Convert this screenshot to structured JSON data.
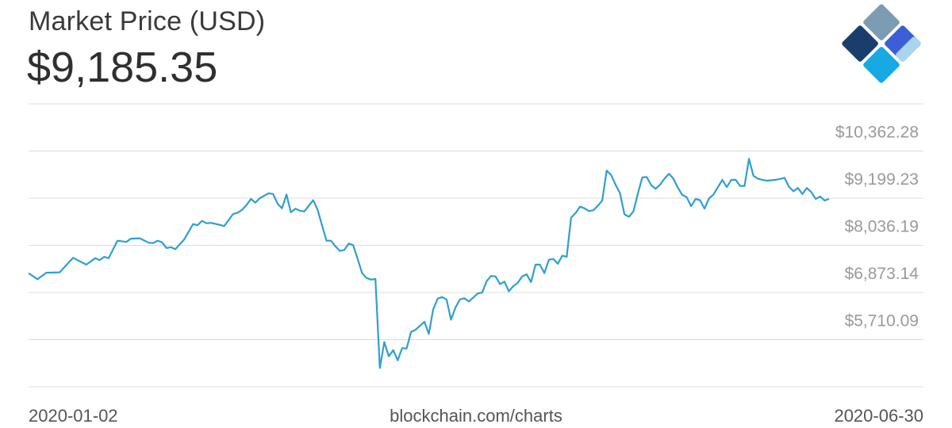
{
  "header": {
    "title": "Market Price (USD)",
    "current_price": "$9,185.35"
  },
  "logo": {
    "icon": "blockchain-diamond-logo-icon",
    "colors": [
      "#7d9cb3",
      "#2c4f9e",
      "#1a3d6e",
      "#3d5ed4",
      "#17a9e3",
      "#a9d5ee"
    ]
  },
  "footer": {
    "start_date": "2020-01-02",
    "source": "blockchain.com/charts",
    "end_date": "2020-06-30"
  },
  "chart_data": {
    "type": "line",
    "title": "Market Price (USD)",
    "xlabel": "",
    "ylabel": "",
    "grid": true,
    "y_axis_position": "right",
    "xlim": [
      "2020-01-02",
      "2020-06-30"
    ],
    "ylim": [
      4547.04,
      11525.33
    ],
    "y_ticks": [
      5710.09,
      6873.14,
      8036.19,
      9199.23,
      10362.28
    ],
    "y_tick_labels": [
      "$5,710.09",
      "$6,873.14",
      "$8,036.19",
      "$9,199.23",
      "$10,362.28"
    ],
    "line_color": "#2f9fcf",
    "series": [
      {
        "values": [
          [
            0,
            7350
          ],
          [
            2,
            7200
          ],
          [
            4,
            7360
          ],
          [
            7,
            7370
          ],
          [
            10,
            7730
          ],
          [
            11,
            7670
          ],
          [
            13,
            7560
          ],
          [
            15,
            7720
          ],
          [
            16,
            7670
          ],
          [
            17,
            7750
          ],
          [
            18,
            7720
          ],
          [
            20,
            8150
          ],
          [
            22,
            8120
          ],
          [
            23,
            8200
          ],
          [
            25,
            8210
          ],
          [
            27,
            8100
          ],
          [
            28,
            8090
          ],
          [
            29,
            8150
          ],
          [
            30,
            8110
          ],
          [
            31,
            7970
          ],
          [
            32,
            7990
          ],
          [
            33,
            7940
          ],
          [
            35,
            8180
          ],
          [
            37,
            8560
          ],
          [
            38,
            8530
          ],
          [
            39,
            8640
          ],
          [
            40,
            8580
          ],
          [
            41,
            8590
          ],
          [
            43,
            8540
          ],
          [
            44,
            8510
          ],
          [
            46,
            8810
          ],
          [
            47,
            8840
          ],
          [
            48,
            8910
          ],
          [
            49,
            9030
          ],
          [
            50,
            9180
          ],
          [
            51,
            9090
          ],
          [
            52,
            9200
          ],
          [
            54,
            9320
          ],
          [
            55,
            9300
          ],
          [
            56,
            9060
          ],
          [
            57,
            8950
          ],
          [
            58,
            9290
          ],
          [
            59,
            8850
          ],
          [
            60,
            8940
          ],
          [
            61,
            8890
          ],
          [
            62,
            8870
          ],
          [
            64,
            9150
          ],
          [
            65,
            8910
          ],
          [
            66,
            8520
          ],
          [
            67,
            8150
          ],
          [
            68,
            8150
          ],
          [
            69,
            8010
          ],
          [
            70,
            7900
          ],
          [
            71,
            7920
          ],
          [
            72,
            8080
          ],
          [
            73,
            8040
          ],
          [
            74,
            7700
          ],
          [
            75,
            7350
          ],
          [
            76,
            7230
          ],
          [
            77,
            7190
          ],
          [
            78,
            7210
          ],
          [
            79,
            5010
          ],
          [
            80,
            5650
          ],
          [
            81,
            5300
          ],
          [
            82,
            5450
          ],
          [
            83,
            5200
          ],
          [
            84,
            5500
          ],
          [
            85,
            5490
          ],
          [
            86,
            5900
          ],
          [
            87,
            5950
          ],
          [
            89,
            6150
          ],
          [
            90,
            5850
          ],
          [
            91,
            6460
          ],
          [
            92,
            6720
          ],
          [
            93,
            6760
          ],
          [
            94,
            6700
          ],
          [
            95,
            6200
          ],
          [
            96,
            6500
          ],
          [
            97,
            6700
          ],
          [
            98,
            6730
          ],
          [
            99,
            6650
          ],
          [
            101,
            6850
          ],
          [
            102,
            6870
          ],
          [
            103,
            7150
          ],
          [
            104,
            7280
          ],
          [
            105,
            7270
          ],
          [
            106,
            7080
          ],
          [
            107,
            7140
          ],
          [
            108,
            6900
          ],
          [
            109,
            7030
          ],
          [
            110,
            7110
          ],
          [
            111,
            7270
          ],
          [
            112,
            7320
          ],
          [
            113,
            7130
          ],
          [
            114,
            7560
          ],
          [
            115,
            7560
          ],
          [
            116,
            7350
          ],
          [
            117,
            7680
          ],
          [
            118,
            7700
          ],
          [
            119,
            7580
          ],
          [
            120,
            7780
          ],
          [
            121,
            7750
          ],
          [
            122,
            8720
          ],
          [
            123,
            8830
          ],
          [
            124,
            8990
          ],
          [
            125,
            8950
          ],
          [
            126,
            8880
          ],
          [
            127,
            8900
          ],
          [
            128,
            9010
          ],
          [
            129,
            9140
          ],
          [
            130,
            9880
          ],
          [
            131,
            9770
          ],
          [
            132,
            9530
          ],
          [
            133,
            9320
          ],
          [
            134,
            8800
          ],
          [
            135,
            8740
          ],
          [
            136,
            8870
          ],
          [
            137,
            9310
          ],
          [
            138,
            9710
          ],
          [
            139,
            9720
          ],
          [
            140,
            9520
          ],
          [
            141,
            9430
          ],
          [
            142,
            9530
          ],
          [
            143,
            9680
          ],
          [
            144,
            9800
          ],
          [
            145,
            9680
          ],
          [
            146,
            9460
          ],
          [
            147,
            9280
          ],
          [
            148,
            9220
          ],
          [
            149,
            9000
          ],
          [
            150,
            9180
          ],
          [
            151,
            9150
          ],
          [
            152,
            8940
          ],
          [
            153,
            9190
          ],
          [
            154,
            9290
          ],
          [
            156,
            9650
          ],
          [
            157,
            9470
          ],
          [
            158,
            9650
          ],
          [
            159,
            9650
          ],
          [
            160,
            9500
          ],
          [
            161,
            9500
          ],
          [
            162,
            10170
          ],
          [
            163,
            9750
          ],
          [
            164,
            9680
          ],
          [
            165,
            9650
          ],
          [
            166,
            9630
          ],
          [
            168,
            9650
          ],
          [
            170,
            9700
          ],
          [
            171,
            9480
          ],
          [
            172,
            9370
          ],
          [
            173,
            9450
          ],
          [
            174,
            9300
          ],
          [
            175,
            9450
          ],
          [
            176,
            9350
          ],
          [
            177,
            9180
          ],
          [
            178,
            9240
          ],
          [
            179,
            9140
          ],
          [
            180,
            9180
          ]
        ]
      }
    ]
  }
}
